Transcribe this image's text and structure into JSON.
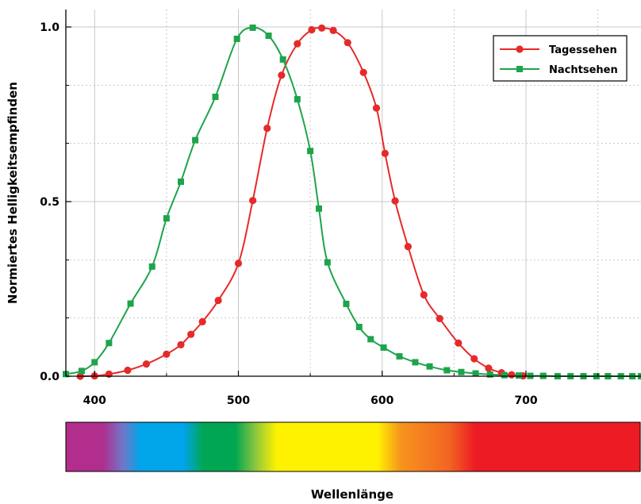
{
  "chart_data": {
    "type": "line",
    "xlabel": "Wellenlänge",
    "ylabel": "Normiertes Helligkeitsempfinden",
    "xlim": [
      380,
      780
    ],
    "ylim": [
      0,
      1.05
    ],
    "x_ticks": [
      "400",
      "500",
      "600",
      "700"
    ],
    "y_ticks": [
      "0.0",
      "0.5",
      "1.0"
    ],
    "grid": true,
    "legend_position": "top-right",
    "colors": {
      "tagessehen": "#e62a2a",
      "nachtsehen": "#1ea44b"
    },
    "series": [
      {
        "name": "Tagessehen",
        "marker": "circle",
        "x": [
          390,
          400,
          410,
          423,
          436,
          450,
          460,
          467,
          475,
          486,
          500,
          510,
          520,
          530,
          541,
          551,
          558,
          566,
          576,
          587,
          596,
          602,
          609,
          618,
          629,
          640,
          653,
          664,
          674,
          683,
          690,
          698
        ],
        "y": [
          0.0,
          0.001,
          0.006,
          0.017,
          0.035,
          0.063,
          0.09,
          0.12,
          0.156,
          0.217,
          0.323,
          0.503,
          0.71,
          0.862,
          0.952,
          0.992,
          0.997,
          0.99,
          0.955,
          0.87,
          0.768,
          0.638,
          0.502,
          0.371,
          0.233,
          0.165,
          0.095,
          0.05,
          0.023,
          0.01,
          0.004,
          0.001
        ]
      },
      {
        "name": "Nachtsehen",
        "marker": "square",
        "x": [
          380,
          391,
          400,
          410,
          425,
          440,
          450,
          460,
          470,
          484,
          499,
          510,
          521,
          531,
          541,
          550,
          556,
          562,
          575,
          584,
          592,
          601,
          612,
          623,
          633,
          645,
          655,
          665,
          675,
          685,
          695,
          703,
          712,
          722,
          731,
          740,
          749,
          757,
          766,
          774,
          780
        ],
        "y": [
          0.006,
          0.015,
          0.04,
          0.095,
          0.208,
          0.314,
          0.452,
          0.557,
          0.676,
          0.8,
          0.966,
          0.998,
          0.975,
          0.907,
          0.793,
          0.645,
          0.48,
          0.326,
          0.207,
          0.141,
          0.106,
          0.082,
          0.057,
          0.04,
          0.028,
          0.017,
          0.012,
          0.008,
          0.005,
          0.003,
          0.002,
          0.001,
          0.001,
          0.0,
          0.0,
          0.0,
          0.0,
          0.0,
          0.0,
          0.0,
          0.0
        ]
      }
    ],
    "color_bar": {
      "range": [
        380,
        780
      ],
      "stops": [
        {
          "wavelength": 380,
          "color": "#b32d8c"
        },
        {
          "wavelength": 406,
          "color": "#b02e8e"
        },
        {
          "wavelength": 420,
          "color": "#6f78c9"
        },
        {
          "wavelength": 432,
          "color": "#00a4e8"
        },
        {
          "wavelength": 462,
          "color": "#00a4e8"
        },
        {
          "wavelength": 476,
          "color": "#00a651"
        },
        {
          "wavelength": 498,
          "color": "#00a651"
        },
        {
          "wavelength": 512,
          "color": "#8cc63f"
        },
        {
          "wavelength": 527,
          "color": "#fff200"
        },
        {
          "wavelength": 597,
          "color": "#fff200"
        },
        {
          "wavelength": 613,
          "color": "#f7941d"
        },
        {
          "wavelength": 647,
          "color": "#f26522"
        },
        {
          "wavelength": 665,
          "color": "#ed1c24"
        },
        {
          "wavelength": 780,
          "color": "#ed1c24"
        }
      ]
    }
  }
}
